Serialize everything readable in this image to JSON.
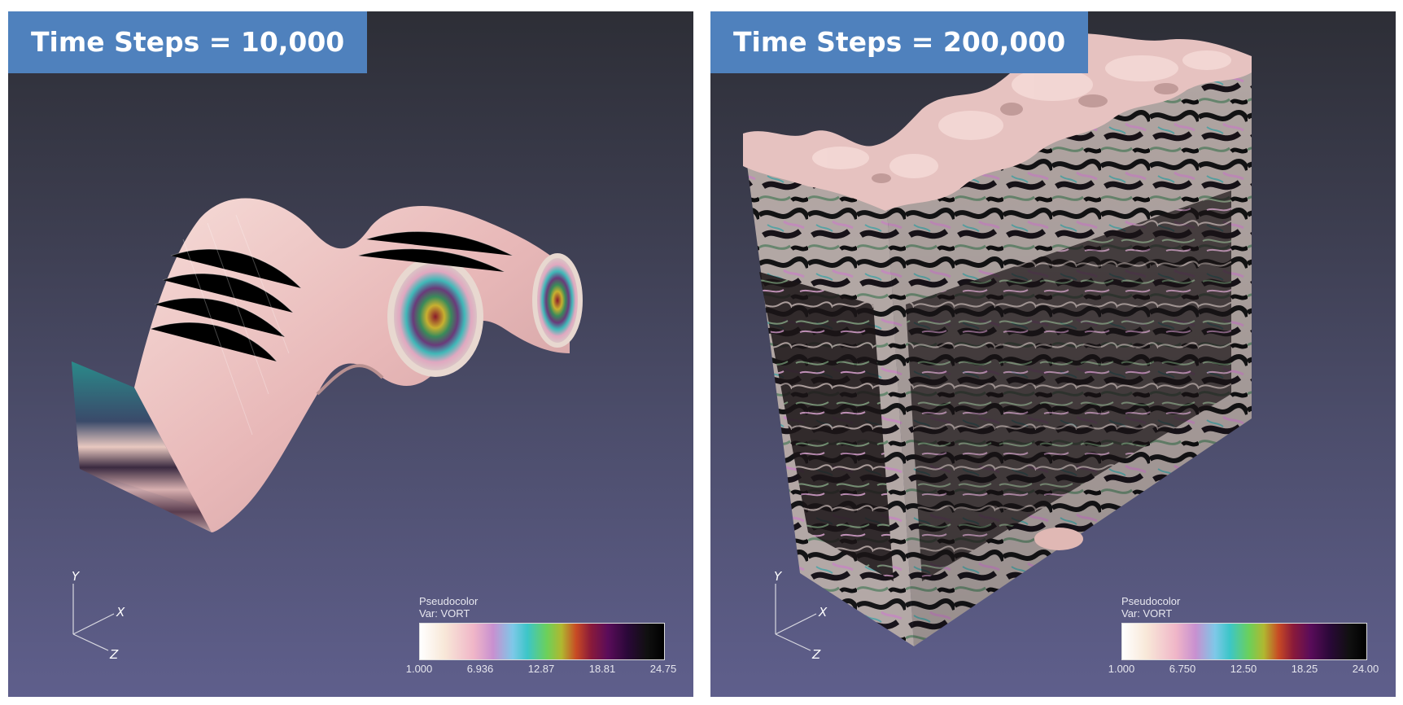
{
  "panels": {
    "left": {
      "label": "Time Steps = 10,000",
      "legend": {
        "title": "Pseudocolor",
        "var": "Var: VORT",
        "ticks": [
          "1.000",
          "6.936",
          "12.87",
          "18.81",
          "24.75"
        ]
      },
      "axes": {
        "x": "X",
        "y": "Y",
        "z": "Z"
      }
    },
    "right": {
      "label": "Time Steps = 200,000",
      "legend": {
        "title": "Pseudocolor",
        "var": "Var: VORT",
        "ticks": [
          "1.000",
          "6.750",
          "12.50",
          "18.25",
          "24.00"
        ]
      },
      "axes": {
        "x": "X",
        "y": "Y",
        "z": "Z"
      }
    }
  },
  "colors": {
    "label_bg": "#4f81bd",
    "surface": "#f0c8c4",
    "background_top": "#2d2e36",
    "background_bottom": "#5f5f8c"
  }
}
